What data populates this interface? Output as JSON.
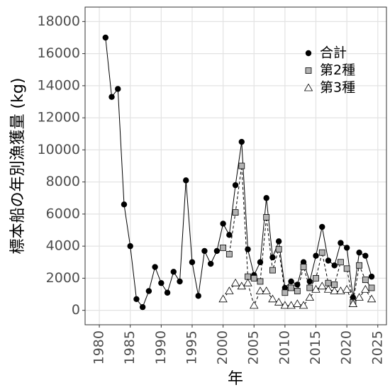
{
  "chart_data": {
    "type": "line",
    "x_label": "年",
    "y_label": "標本船の年別漁獲量 (kg)",
    "xlim": [
      1977.7,
      2026.4
    ],
    "xticks": [
      1980,
      1985,
      1990,
      1995,
      2000,
      2005,
      2010,
      2015,
      2020,
      2025
    ],
    "ylim": [
      -900,
      18900
    ],
    "yticks": [
      0,
      2000,
      4000,
      6000,
      8000,
      10000,
      12000,
      14000,
      16000,
      18000
    ],
    "grid": true,
    "legend": "top-right",
    "series": [
      {
        "name": "合計",
        "color": "#000000",
        "marker": "circle",
        "line_style": "solid",
        "x": [
          1981,
          1982,
          1983,
          1984,
          1985,
          1986,
          1987,
          1988,
          1989,
          1990,
          1991,
          1992,
          1993,
          1994,
          1995,
          1996,
          1997,
          1998,
          1999,
          2000,
          2001,
          2002,
          2003,
          2004,
          2005,
          2006,
          2007,
          2008,
          2009,
          2010,
          2011,
          2012,
          2013,
          2014,
          2015,
          2016,
          2017,
          2018,
          2019,
          2020,
          2021,
          2022,
          2023,
          2024
        ],
        "values": [
          17000,
          13300,
          13800,
          6600,
          4000,
          700,
          200,
          1200,
          2700,
          1700,
          1100,
          2400,
          1800,
          8100,
          3000,
          900,
          3700,
          2900,
          3700,
          5400,
          4700,
          7800,
          10500,
          3800,
          2200,
          3000,
          7000,
          3300,
          4300,
          1400,
          1800,
          1600,
          3000,
          1800,
          3400,
          5200,
          3100,
          2800,
          4200,
          3900,
          800,
          3600,
          3400,
          2100
        ]
      },
      {
        "name": "第2種",
        "color": "#b3b3b3",
        "marker": "square",
        "line_style": "dashed",
        "x": [
          2000,
          2001,
          2002,
          2003,
          2004,
          2005,
          2006,
          2007,
          2008,
          2009,
          2010,
          2011,
          2012,
          2013,
          2014,
          2015,
          2016,
          2017,
          2018,
          2019,
          2020,
          2021,
          2022,
          2023,
          2024
        ],
        "values": [
          3900,
          3500,
          6100,
          9000,
          2100,
          2000,
          1800,
          5800,
          2500,
          3800,
          1100,
          1400,
          1200,
          2700,
          1400,
          2000,
          3600,
          1700,
          1600,
          3000,
          2600,
          500,
          2800,
          1900,
          1400
        ]
      },
      {
        "name": "第3種",
        "color": "#ffffff",
        "marker": "triangle",
        "line_style": "dashed",
        "x": [
          2000,
          2001,
          2002,
          2003,
          2004,
          2005,
          2006,
          2007,
          2008,
          2009,
          2010,
          2011,
          2012,
          2013,
          2014,
          2015,
          2016,
          2017,
          2018,
          2019,
          2020,
          2021,
          2022,
          2023,
          2024
        ],
        "values": [
          700,
          1200,
          1700,
          1500,
          1700,
          300,
          1200,
          1200,
          700,
          500,
          300,
          300,
          400,
          300,
          800,
          1300,
          1500,
          1300,
          1200,
          1200,
          1300,
          400,
          800,
          1300,
          700
        ]
      }
    ]
  }
}
